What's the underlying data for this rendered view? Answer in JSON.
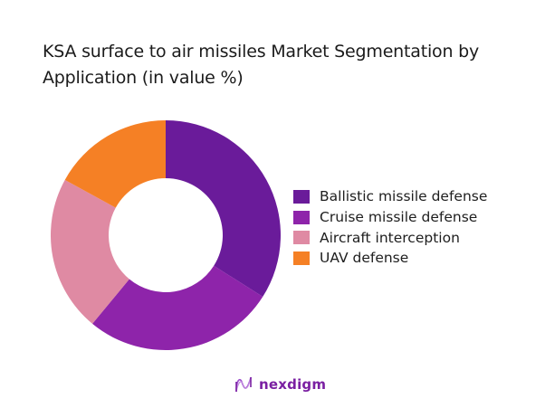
{
  "title": "KSA surface to air missiles Market Segmentation by Application (in value %)",
  "chart_data": {
    "type": "pie",
    "variant": "donut",
    "title": "KSA surface to air missiles Market Segmentation by Application (in value %)",
    "categories": [
      "Ballistic missile defense",
      "Cruise missile defense",
      "Aircraft interception",
      "UAV defense"
    ],
    "values": [
      34,
      27,
      22,
      17
    ],
    "colors": [
      "#6A1B9A",
      "#8E24AA",
      "#DF8AA3",
      "#F58025"
    ],
    "start_angle_deg": 0,
    "direction": "clockwise",
    "legend_position": "right",
    "data_labels": false
  },
  "legend": {
    "items": [
      {
        "label": "Ballistic missile defense",
        "color": "#6A1B9A"
      },
      {
        "label": "Cruise missile defense",
        "color": "#8E24AA"
      },
      {
        "label": "Aircraft interception",
        "color": "#DF8AA3"
      },
      {
        "label": "UAV defense",
        "color": "#F58025"
      }
    ]
  },
  "logo": {
    "text": "nexdigm",
    "color": "#7A1FA2"
  }
}
